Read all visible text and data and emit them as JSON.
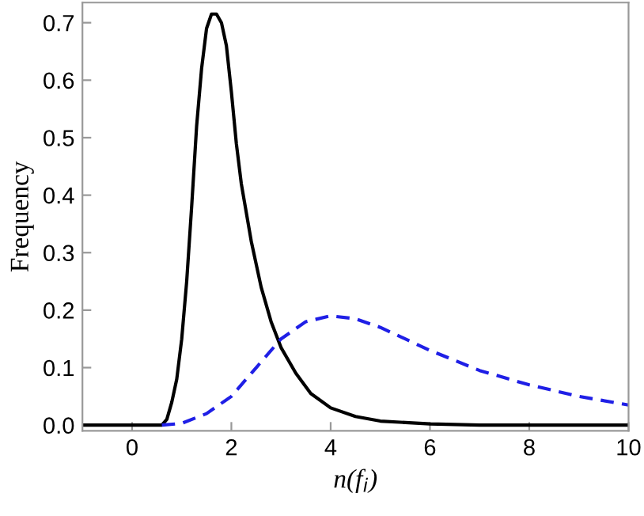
{
  "chart_data": {
    "type": "line",
    "xlabel": "n(f$_{i}$)",
    "ylabel": "Frequency",
    "xlim": [
      -1,
      10
    ],
    "ylim": [
      -0.01,
      0.735
    ],
    "xticks": [
      0,
      2,
      4,
      6,
      8,
      10
    ],
    "yticks": [
      {
        "value": 0,
        "label": "0.0"
      },
      0.1,
      0.2,
      0.3,
      0.4,
      0.5,
      0.6,
      0.7
    ],
    "grid": false,
    "marker": "none",
    "series": [
      {
        "color": "#000000",
        "line_style": "solid",
        "x": [
          -1,
          0.6,
          0.7,
          0.8,
          0.9,
          1.0,
          1.1,
          1.2,
          1.3,
          1.4,
          1.5,
          1.6,
          1.7,
          1.8,
          1.9,
          2.0,
          2.1,
          2.2,
          2.4,
          2.6,
          2.8,
          3.0,
          3.3,
          3.6,
          4.0,
          4.5,
          5,
          6,
          7,
          8,
          10
        ],
        "values": [
          0,
          0,
          0.01,
          0.04,
          0.08,
          0.15,
          0.25,
          0.38,
          0.52,
          0.62,
          0.69,
          0.715,
          0.715,
          0.7,
          0.66,
          0.58,
          0.49,
          0.42,
          0.32,
          0.24,
          0.18,
          0.135,
          0.09,
          0.055,
          0.03,
          0.015,
          0.007,
          0.002,
          0,
          0,
          0
        ]
      },
      {
        "color": "#1f1fe6",
        "line_style": "dashed",
        "x": [
          0.6,
          1.0,
          1.5,
          2.0,
          2.5,
          3.0,
          3.5,
          4.0,
          4.5,
          5,
          6,
          7,
          8,
          9,
          10
        ],
        "values": [
          0,
          0.003,
          0.02,
          0.05,
          0.1,
          0.15,
          0.18,
          0.19,
          0.185,
          0.17,
          0.13,
          0.095,
          0.07,
          0.05,
          0.035
        ]
      }
    ]
  }
}
